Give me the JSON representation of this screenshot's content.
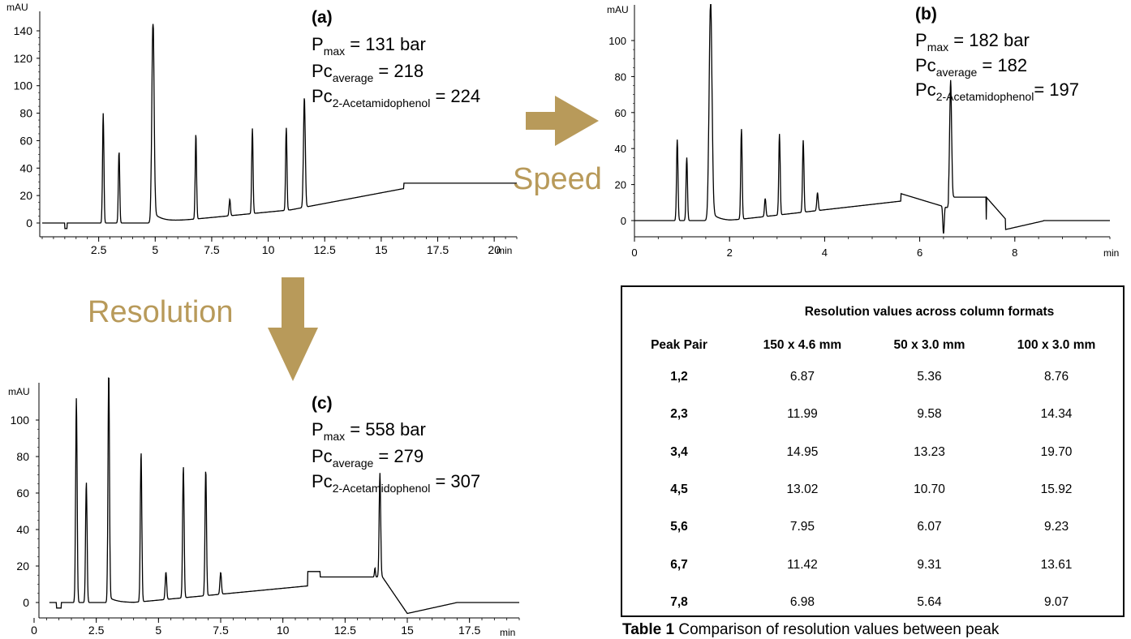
{
  "charts": [
    {
      "id": "a",
      "label": "(a)",
      "pmax_prefix": "P",
      "pmax_sub": "max",
      "pmax_value": " = 131 bar",
      "pc_avg_prefix": "Pc",
      "pc_avg_sub": "average",
      "pc_avg_value": " = 218",
      "pc_2a_prefix": "Pc",
      "pc_2a_sub": "2-Acetamidophenol",
      "pc_2a_value": " = 224",
      "ylabel": "mAU",
      "xunit": "min",
      "xticks": [
        "2.5",
        "5",
        "7.5",
        "10",
        "12.5",
        "15",
        "17.5",
        "20"
      ],
      "yticks": [
        "0",
        "20",
        "40",
        "60",
        "80",
        "100",
        "120",
        "140"
      ]
    },
    {
      "id": "b",
      "label": "(b)",
      "pmax_prefix": "P",
      "pmax_sub": "max",
      "pmax_value": " = 182 bar",
      "pc_avg_prefix": "Pc",
      "pc_avg_sub": "average",
      "pc_avg_value": " = 182",
      "pc_2a_prefix": "Pc",
      "pc_2a_sub": "2-Acetamidophenol",
      "pc_2a_value": "= 197",
      "ylabel": "mAU",
      "xunit": "min",
      "xticks": [
        "0",
        "2",
        "4",
        "6",
        "8"
      ],
      "yticks": [
        "0",
        "20",
        "40",
        "60",
        "80",
        "100"
      ]
    },
    {
      "id": "c",
      "label": "(c)",
      "pmax_prefix": "P",
      "pmax_sub": "max",
      "pmax_value": " = 558 bar",
      "pc_avg_prefix": "Pc",
      "pc_avg_sub": "average",
      "pc_avg_value": " = 279",
      "pc_2a_prefix": "Pc",
      "pc_2a_sub": "2-Acetamidophenol",
      "pc_2a_value": " = 307",
      "ylabel": "mAU",
      "xunit": "min",
      "xticks": [
        "0",
        "2.5",
        "5",
        "7.5",
        "10",
        "12.5",
        "15",
        "17.5"
      ],
      "yticks": [
        "0",
        "20",
        "40",
        "60",
        "80",
        "100"
      ]
    }
  ],
  "arrows": {
    "speed_label": "Speed",
    "resolution_label": "Resolution",
    "color": "#B89A5A"
  },
  "chart_data": [
    {
      "type": "line",
      "ylabel": "mAU",
      "xlabel": "min",
      "xlim": [
        0,
        21
      ],
      "ylim": [
        -5,
        145
      ],
      "peaks_min": [
        2.7,
        3.4,
        4.9,
        6.8,
        8.3,
        9.3,
        10.8,
        11.6
      ],
      "peak_heights_mAU": [
        80,
        52,
        145,
        62,
        12,
        62,
        60,
        80
      ]
    },
    {
      "type": "line",
      "ylabel": "mAU",
      "xlabel": "min",
      "xlim": [
        0,
        10
      ],
      "ylim": [
        -5,
        120
      ],
      "peaks_min": [
        0.9,
        1.1,
        1.6,
        2.25,
        2.75,
        3.05,
        3.55,
        3.85,
        6.5,
        6.65
      ],
      "peak_heights_mAU": [
        45,
        35,
        120,
        50,
        10,
        45,
        40,
        10,
        20,
        65
      ]
    },
    {
      "type": "line",
      "ylabel": "mAU",
      "xlabel": "min",
      "xlim": [
        0,
        19.5
      ],
      "ylim": [
        -5,
        125
      ],
      "peaks_min": [
        1.7,
        2.1,
        3.0,
        4.3,
        5.3,
        6.0,
        6.9,
        7.5,
        13.7,
        13.9
      ],
      "peak_heights_mAU": [
        112,
        66,
        125,
        82,
        15,
        72,
        69,
        12,
        25,
        57
      ]
    },
    {
      "type": "table",
      "title": "Resolution values across column formats",
      "columns": [
        "Peak Pair",
        "150 x 4.6 mm",
        "50 x 3.0 mm",
        "100 x 3.0 mm"
      ],
      "rows": [
        [
          "1,2",
          "6.87",
          "5.36",
          "8.76"
        ],
        [
          "2,3",
          "11.99",
          "9.58",
          "14.34"
        ],
        [
          "3,4",
          "14.95",
          "13.23",
          "19.70"
        ],
        [
          "4,5",
          "13.02",
          "10.70",
          "15.92"
        ],
        [
          "5,6",
          "7.95",
          "6.07",
          "9.23"
        ],
        [
          "6,7",
          "11.42",
          "9.31",
          "13.61"
        ],
        [
          "7,8",
          "6.98",
          "5.64",
          "9.07"
        ]
      ]
    }
  ],
  "caption": {
    "bold": "Table 1",
    "text": " Comparison of resolution values between peak"
  }
}
